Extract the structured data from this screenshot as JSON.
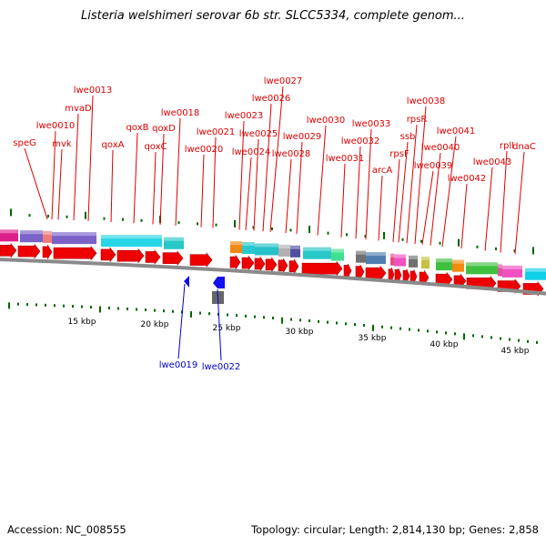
{
  "header": {
    "title": "Listeria welshimeri serovar 6b str. SLCC5334, complete genom..."
  },
  "footer": {
    "accession": "Accession: NC_008555",
    "summary": "Topology: circular; Length: 2,814,130 bp; Genes: 2,858"
  },
  "colors": {
    "label_forward": "#dd0000",
    "label_reverse": "#0000cc",
    "cds_forward": "#ee0000",
    "cds_reverse": "#1111ee",
    "backbone": "#888888",
    "tick": "#006600"
  },
  "scale_labels": [
    "15 kbp",
    "20 kbp",
    "25 kbp",
    "30 kbp",
    "35 kbp",
    "40 kbp",
    "45 kbp"
  ],
  "gene_labels_forward": [
    "speG",
    "lwe0010",
    "mvk",
    "mvaD",
    "lwe0013",
    "qoxA",
    "qoxB",
    "qoxC",
    "qoxD",
    "lwe0018",
    "lwe0020",
    "lwe0021",
    "lwe0023",
    "lwe0024",
    "lwe0025",
    "lwe0026",
    "lwe0027",
    "lwe0028",
    "lwe0029",
    "lwe0030",
    "lwe0031",
    "lwe0032",
    "lwe0033",
    "arcA",
    "rpsF",
    "ssb",
    "rpsR",
    "lwe0038",
    "lwe0039",
    "lwe0040",
    "lwe0041",
    "lwe0042",
    "lwe0043",
    "rplI",
    "dnaC"
  ],
  "gene_labels_reverse": [
    "lwe0019",
    "lwe0022"
  ]
}
